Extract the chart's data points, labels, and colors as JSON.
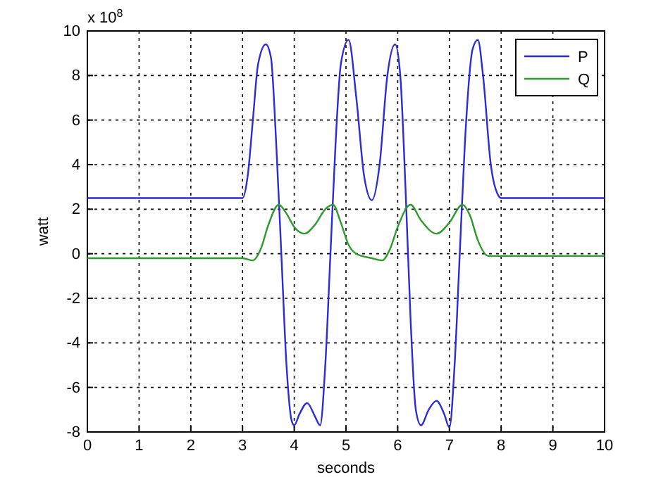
{
  "chart_data": {
    "type": "line",
    "xlabel": "seconds",
    "ylabel": "watt",
    "annotations": [
      "x 10$^{8}$"
    ],
    "xlim": [
      0,
      10
    ],
    "xticks": [
      0,
      1,
      2,
      3,
      4,
      5,
      6,
      7,
      8,
      9,
      10
    ],
    "ylim": [
      -8,
      10
    ],
    "yticks": [
      -8,
      -6,
      -4,
      -2,
      0,
      2,
      4,
      6,
      8,
      10
    ],
    "grid": true,
    "legend": "top right",
    "line_style": "solid",
    "series": [
      {
        "name": "P",
        "color": "#2b2bdb",
        "x": [
          0,
          3,
          3.1,
          3.2,
          3.3,
          3.45,
          3.55,
          3.65,
          3.75,
          3.85,
          3.95,
          4.0,
          4.1,
          4.25,
          4.4,
          4.5,
          4.6,
          4.7,
          4.8,
          4.9,
          5.05,
          5.2,
          5.35,
          5.5,
          5.65,
          5.8,
          5.95,
          6.05,
          6.15,
          6.25,
          6.35,
          6.45,
          6.6,
          6.75,
          6.9,
          7.0,
          7.1,
          7.2,
          7.3,
          7.45,
          7.55,
          7.65,
          7.8,
          7.95,
          8,
          10
        ],
        "values": [
          2.5,
          2.5,
          3.5,
          6,
          8.5,
          9.4,
          8.8,
          5,
          0,
          -5,
          -7.5,
          -7.7,
          -7.2,
          -6.7,
          -7.3,
          -7.7,
          -5,
          0,
          5,
          8.5,
          9.6,
          7,
          3.5,
          2.4,
          4,
          8,
          9.4,
          8,
          3,
          -3,
          -7,
          -7.7,
          -7,
          -6.6,
          -7.2,
          -7.8,
          -5,
          0,
          5,
          9.2,
          9.6,
          8,
          4,
          2.6,
          2.5,
          2.5
        ]
      },
      {
        "name": "Q",
        "color": "#2e9a2e",
        "x": [
          0,
          3,
          3.2,
          3.35,
          3.5,
          3.7,
          3.85,
          4.0,
          4.2,
          4.4,
          4.6,
          4.75,
          4.9,
          5.05,
          5.2,
          5.5,
          5.7,
          5.85,
          6.0,
          6.25,
          6.45,
          6.75,
          7.0,
          7.25,
          7.4,
          7.55,
          7.75,
          8,
          10
        ],
        "values": [
          -0.2,
          -0.2,
          -0.3,
          0.2,
          1.3,
          2.2,
          1.8,
          1.2,
          0.9,
          1.3,
          2.0,
          2.2,
          1.4,
          0.4,
          0,
          -0.2,
          -0.3,
          0.2,
          1.2,
          2.2,
          1.5,
          0.9,
          1.4,
          2.2,
          1.7,
          0.6,
          -0.1,
          -0.1,
          -0.1
        ]
      }
    ]
  }
}
